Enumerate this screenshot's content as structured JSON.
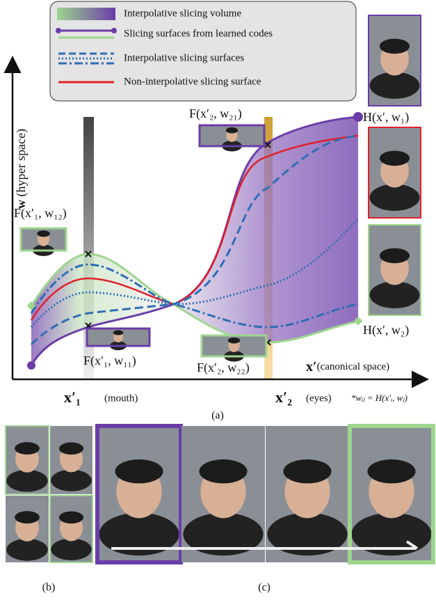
{
  "legend": [
    "Interpolative slicing volume",
    "Slicing surfaces from learned codes",
    "Interpolative slicing surfaces",
    "Non-interpolative slicing surface"
  ],
  "axes": {
    "y_bold": "w",
    "y_text": "(hyper space)",
    "x_bold": "x′",
    "x_text": "(canonical space)"
  },
  "labels": {
    "f_x1_w12": "F(x′₁, w₁₂)",
    "f_x1_w11": "F(x′₁, w₁₁)",
    "f_x2_w21": "F(x′₂, w₂₁)",
    "f_x2_w22": "F(x′₂, w₂₂)",
    "h_w1": "H(x′, w₁)",
    "h_w2": "H(x′, w₂)"
  },
  "ticks": {
    "x1": "x′₁",
    "x1_note": "(mouth)",
    "x2": "x′₂",
    "x2_note": "(eyes)"
  },
  "footnote": "*wᵢⱼ = H(x′ᵢ, wⱼ)",
  "captions": {
    "a": "(a)",
    "b": "(b)",
    "c": "(c)"
  }
}
